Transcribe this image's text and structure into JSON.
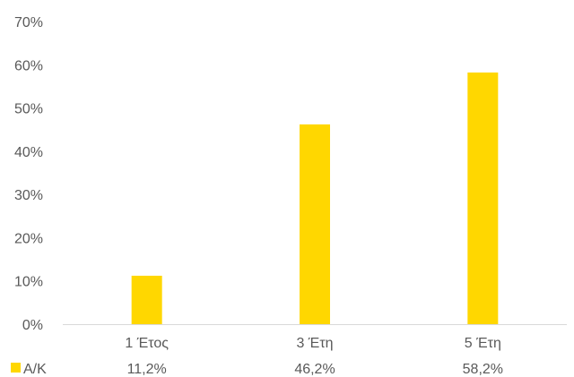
{
  "chart_data": {
    "type": "bar",
    "categories": [
      "1 Έτος",
      "3 Έτη",
      "5 Έτη"
    ],
    "series": [
      {
        "name": "Α/Κ",
        "values": [
          11.2,
          46.2,
          58.2
        ],
        "value_labels": [
          "11,2%",
          "46,2%",
          "58,2%"
        ],
        "color": "#FFD700"
      }
    ],
    "ylim": [
      0,
      70
    ],
    "yticks": [
      0,
      10,
      20,
      30,
      40,
      50,
      60,
      70
    ],
    "ytick_labels": [
      "0%",
      "10%",
      "20%",
      "30%",
      "40%",
      "50%",
      "60%",
      "70%"
    ],
    "grid": false,
    "legend": "data-table-left",
    "axis_color": "#D9D9D9"
  }
}
